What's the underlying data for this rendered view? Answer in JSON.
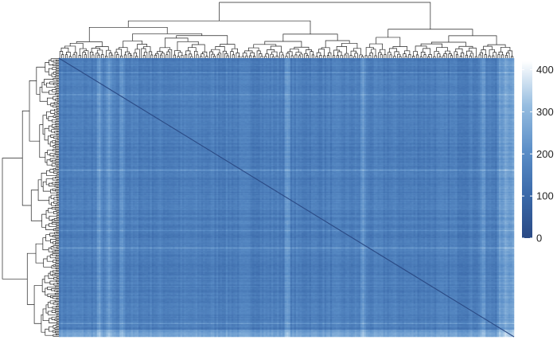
{
  "chart_data": {
    "type": "heatmap",
    "title": "",
    "xlabel": "",
    "ylabel": "",
    "matrix_size": 240,
    "value_range": [
      0,
      420
    ],
    "typical_offdiagonal_value": 160,
    "diagonal_value": 0,
    "dendrograms": {
      "rows": true,
      "columns": true
    },
    "row_cluster_split_fraction": 0.62,
    "column_cluster_split_fraction": 0.67,
    "lighter_column_bands_fraction": [
      0.09,
      0.11,
      0.14,
      0.5,
      0.67,
      0.93,
      0.97
    ],
    "lighter_row_bands_fraction": [
      0.05,
      0.13,
      0.4,
      0.62,
      0.68,
      0.95
    ],
    "colorbar": {
      "ticks": [
        0,
        100,
        200,
        300,
        400
      ],
      "tick_labels": [
        "0",
        "100",
        "200",
        "300",
        "400"
      ],
      "colors": [
        "#2a4a85",
        "#3b6aaa",
        "#5c8fc8",
        "#96bde0",
        "#ffffff"
      ]
    },
    "legend_position": "right",
    "grid": false
  }
}
